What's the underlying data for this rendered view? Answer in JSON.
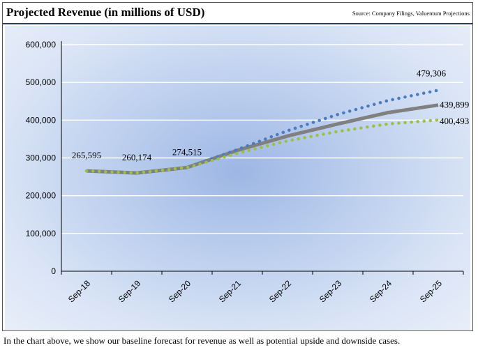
{
  "header": {
    "title": "Projected Revenue (in millions of USD)",
    "source": "Source: Company Filings, Valuentum Projections"
  },
  "caption": "In the chart above, we show our baseline forecast for revenue as well as potential upside and downside cases.",
  "colors": {
    "base": "#808080",
    "upside": "#4a7bbf",
    "downside": "#9cc044",
    "header_rule": "#2b3d63"
  },
  "chart_data": {
    "type": "line",
    "title": "Projected Revenue (in millions of USD)",
    "categories": [
      "Sep-18",
      "Sep-19",
      "Sep-20",
      "Sep-21",
      "Sep-22",
      "Sep-23",
      "Sep-24",
      "Sep-25"
    ],
    "ylim": [
      0,
      600000
    ],
    "yticks": [
      0,
      100000,
      200000,
      300000,
      400000,
      500000,
      600000
    ],
    "ytick_labels": [
      "0",
      "100,000",
      "200,000",
      "300,000",
      "400,000",
      "500,000",
      "600,000"
    ],
    "grid": true,
    "legend": "none",
    "series": [
      {
        "style": "solid-gray",
        "values": [
          265595,
          260174,
          274515,
          320000,
          358000,
          390000,
          420000,
          439899
        ]
      },
      {
        "style": "dotted-blue",
        "values": [
          265595,
          260174,
          274515,
          322000,
          372000,
          415000,
          452000,
          479306
        ]
      },
      {
        "style": "dotted-green",
        "values": [
          265595,
          260174,
          274515,
          312000,
          345000,
          370000,
          390000,
          400493
        ]
      }
    ],
    "data_labels": [
      {
        "text": "265,595",
        "series": 0,
        "index": 0
      },
      {
        "text": "260,174",
        "series": 0,
        "index": 1
      },
      {
        "text": "274,515",
        "series": 0,
        "index": 2
      },
      {
        "text": "479,306",
        "series": 1,
        "index": 7
      },
      {
        "text": "439,899",
        "series": 0,
        "index": 7
      },
      {
        "text": "400,493",
        "series": 2,
        "index": 7
      }
    ]
  }
}
